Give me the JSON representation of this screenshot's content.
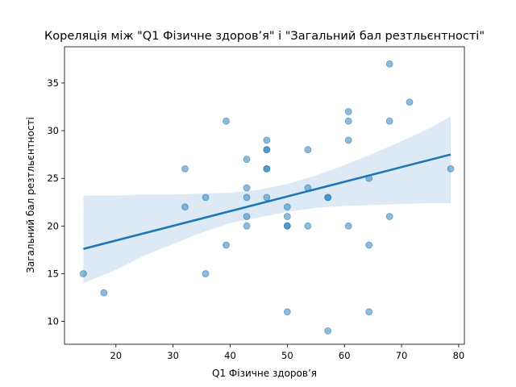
{
  "chart_data": {
    "type": "scatter",
    "title": "Кореляція між \"Q1 Фізичне здоров’я\" і \"Загальний бал резтльєнтності\"",
    "xlabel": "Q1 Фізичне здоров’я",
    "ylabel": "Загальний бал резтльєнтності",
    "xlim": [
      11,
      81
    ],
    "ylim": [
      7.6,
      38.8
    ],
    "x_ticks": [
      "20",
      "30",
      "40",
      "50",
      "60",
      "70",
      "80"
    ],
    "y_ticks": [
      "10",
      "15",
      "20",
      "25",
      "30",
      "35"
    ],
    "grid": false,
    "colors": {
      "points": "#1f77b4",
      "line": "#1f77b4",
      "band": "#c6dcef"
    },
    "points": [
      {
        "x": 14.3,
        "y": 15
      },
      {
        "x": 17.9,
        "y": 13
      },
      {
        "x": 32.1,
        "y": 26
      },
      {
        "x": 32.1,
        "y": 22
      },
      {
        "x": 35.7,
        "y": 23
      },
      {
        "x": 35.7,
        "y": 15
      },
      {
        "x": 39.3,
        "y": 31
      },
      {
        "x": 39.3,
        "y": 18
      },
      {
        "x": 42.9,
        "y": 27
      },
      {
        "x": 42.9,
        "y": 24
      },
      {
        "x": 42.9,
        "y": 23
      },
      {
        "x": 42.9,
        "y": 21
      },
      {
        "x": 42.9,
        "y": 20
      },
      {
        "x": 46.4,
        "y": 29
      },
      {
        "x": 46.4,
        "y": 28
      },
      {
        "x": 46.4,
        "y": 28
      },
      {
        "x": 46.4,
        "y": 26
      },
      {
        "x": 46.4,
        "y": 26
      },
      {
        "x": 46.4,
        "y": 23
      },
      {
        "x": 50.0,
        "y": 22
      },
      {
        "x": 50.0,
        "y": 21
      },
      {
        "x": 50.0,
        "y": 20
      },
      {
        "x": 50.0,
        "y": 20
      },
      {
        "x": 50.0,
        "y": 11
      },
      {
        "x": 53.6,
        "y": 28
      },
      {
        "x": 53.6,
        "y": 24
      },
      {
        "x": 53.6,
        "y": 20
      },
      {
        "x": 57.1,
        "y": 23
      },
      {
        "x": 57.1,
        "y": 23
      },
      {
        "x": 57.1,
        "y": 9
      },
      {
        "x": 60.7,
        "y": 32
      },
      {
        "x": 60.7,
        "y": 31
      },
      {
        "x": 60.7,
        "y": 29
      },
      {
        "x": 60.7,
        "y": 20
      },
      {
        "x": 64.3,
        "y": 25
      },
      {
        "x": 64.3,
        "y": 18
      },
      {
        "x": 64.3,
        "y": 11
      },
      {
        "x": 67.9,
        "y": 37
      },
      {
        "x": 67.9,
        "y": 31
      },
      {
        "x": 67.9,
        "y": 21
      },
      {
        "x": 71.4,
        "y": 33
      },
      {
        "x": 78.6,
        "y": 26
      }
    ],
    "regression": {
      "x": [
        14.3,
        78.6
      ],
      "y": [
        17.6,
        27.5
      ]
    },
    "confidence_band": {
      "x": [
        14.3,
        20,
        25,
        30,
        35,
        40,
        45,
        50,
        55,
        60,
        65,
        70,
        75,
        78.6
      ],
      "upper": [
        23.2,
        23.2,
        23.3,
        23.3,
        23.4,
        23.5,
        23.8,
        24.4,
        25.3,
        26.4,
        27.6,
        28.9,
        30.3,
        31.5
      ],
      "lower": [
        14.0,
        15.4,
        16.9,
        18.1,
        19.3,
        20.3,
        20.9,
        21.5,
        21.9,
        22.1,
        22.2,
        22.3,
        22.4,
        22.4
      ]
    }
  }
}
